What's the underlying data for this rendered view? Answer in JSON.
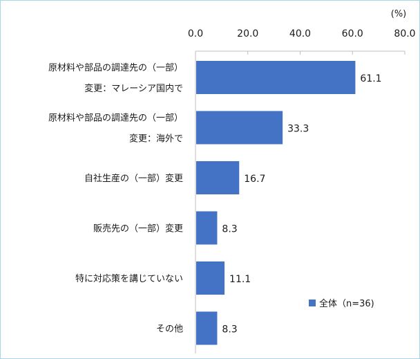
{
  "chart_data": {
    "type": "bar",
    "orientation": "horizontal",
    "unit_label": "(%)",
    "xlim": [
      0,
      80
    ],
    "ticks": [
      "0.0",
      "20.0",
      "40.0",
      "60.0",
      "80.0"
    ],
    "tick_values": [
      0,
      20,
      40,
      60,
      80
    ],
    "categories": [
      [
        "原材料や部品の調達先の（一部）",
        "変更：マレーシア国内で"
      ],
      [
        "原材料や部品の調達先の（一部）",
        "変更：海外で"
      ],
      [
        "自社生産の（一部）変更"
      ],
      [
        "販売先の（一部）変更"
      ],
      [
        "特に対応策を講じていない"
      ],
      [
        "その他"
      ]
    ],
    "series": [
      {
        "name": "全体（n=36)",
        "values": [
          61.1,
          33.3,
          16.7,
          8.3,
          11.1,
          8.3
        ],
        "labels": [
          "61.1",
          "33.3",
          "16.7",
          "8.3",
          "11.1",
          "8.3"
        ]
      }
    ],
    "bar_color": "#4472c4",
    "legend_position": "lower-right",
    "grid": false
  }
}
